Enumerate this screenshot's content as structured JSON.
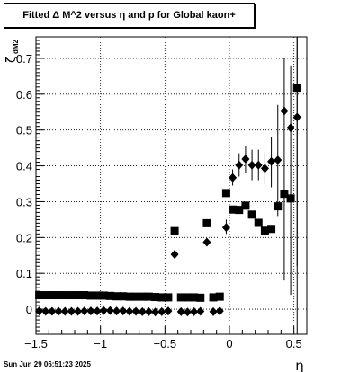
{
  "title": "Fitted Δ M^2 versus η and p for Global kaon+",
  "timestamp": "Sun Jun 29 06:51:23 2025",
  "chart_data": {
    "type": "scatter",
    "xlabel": "η",
    "ylabel": "ζ",
    "ylabel_sub": "dM2",
    "xlim": [
      -1.5,
      0.6
    ],
    "ylim": [
      -0.07,
      0.76
    ],
    "xticks": [
      -1.5,
      -1,
      -0.5,
      0,
      0.5
    ],
    "xtick_labels": [
      "−1.5",
      "−1",
      "−0.5",
      "0",
      "0.5"
    ],
    "yticks": [
      0,
      0.1,
      0.2,
      0.3,
      0.4,
      0.5,
      0.6,
      0.7
    ],
    "ytick_labels": [
      "0",
      "0.1",
      "0.2",
      "0.3",
      "0.4",
      "0.5",
      "0.6",
      "0.7"
    ],
    "grid": true,
    "vline_x": 0.525,
    "series": [
      {
        "marker": "square",
        "points": [
          {
            "x": -1.475,
            "y": 0.039
          },
          {
            "x": -1.425,
            "y": 0.039
          },
          {
            "x": -1.375,
            "y": 0.039
          },
          {
            "x": -1.325,
            "y": 0.039
          },
          {
            "x": -1.275,
            "y": 0.039
          },
          {
            "x": -1.225,
            "y": 0.039
          },
          {
            "x": -1.175,
            "y": 0.039
          },
          {
            "x": -1.125,
            "y": 0.039
          },
          {
            "x": -1.075,
            "y": 0.038
          },
          {
            "x": -1.025,
            "y": 0.038
          },
          {
            "x": -0.975,
            "y": 0.038
          },
          {
            "x": -0.925,
            "y": 0.037
          },
          {
            "x": -0.875,
            "y": 0.036
          },
          {
            "x": -0.825,
            "y": 0.036
          },
          {
            "x": -0.775,
            "y": 0.035
          },
          {
            "x": -0.725,
            "y": 0.035
          },
          {
            "x": -0.675,
            "y": 0.035
          },
          {
            "x": -0.625,
            "y": 0.035
          },
          {
            "x": -0.575,
            "y": 0.034
          },
          {
            "x": -0.525,
            "y": 0.033
          },
          {
            "x": -0.475,
            "y": 0.033
          },
          {
            "x": -0.425,
            "y": 0.218
          },
          {
            "x": -0.375,
            "y": 0.033
          },
          {
            "x": -0.325,
            "y": 0.033
          },
          {
            "x": -0.275,
            "y": 0.033
          },
          {
            "x": -0.225,
            "y": 0.032
          },
          {
            "x": -0.175,
            "y": 0.24
          },
          {
            "x": -0.125,
            "y": 0.033
          },
          {
            "x": -0.075,
            "y": 0.035
          },
          {
            "x": -0.025,
            "y": 0.324
          },
          {
            "x": 0.025,
            "y": 0.278
          },
          {
            "x": 0.075,
            "y": 0.277
          },
          {
            "x": 0.125,
            "y": 0.289
          },
          {
            "x": 0.175,
            "y": 0.264
          },
          {
            "x": 0.225,
            "y": 0.241
          },
          {
            "x": 0.275,
            "y": 0.219
          },
          {
            "x": 0.325,
            "y": 0.224
          },
          {
            "x": 0.375,
            "y": 0.287
          },
          {
            "x": 0.425,
            "y": 0.322
          },
          {
            "x": 0.475,
            "y": 0.309
          },
          {
            "x": 0.525,
            "y": 0.618
          }
        ]
      },
      {
        "marker": "diamond",
        "points": [
          {
            "x": -1.475,
            "y": -0.005
          },
          {
            "x": -1.425,
            "y": -0.006
          },
          {
            "x": -1.375,
            "y": -0.006
          },
          {
            "x": -1.325,
            "y": -0.006
          },
          {
            "x": -1.275,
            "y": -0.006
          },
          {
            "x": -1.225,
            "y": -0.006
          },
          {
            "x": -1.175,
            "y": -0.006
          },
          {
            "x": -1.125,
            "y": -0.005
          },
          {
            "x": -1.075,
            "y": -0.005
          },
          {
            "x": -1.025,
            "y": -0.005
          },
          {
            "x": -0.975,
            "y": -0.004
          },
          {
            "x": -0.925,
            "y": -0.004
          },
          {
            "x": -0.875,
            "y": -0.005
          },
          {
            "x": -0.825,
            "y": -0.005
          },
          {
            "x": -0.775,
            "y": -0.006
          },
          {
            "x": -0.725,
            "y": -0.006
          },
          {
            "x": -0.675,
            "y": -0.007
          },
          {
            "x": -0.625,
            "y": -0.007
          },
          {
            "x": -0.575,
            "y": -0.008
          },
          {
            "x": -0.525,
            "y": -0.007
          },
          {
            "x": -0.475,
            "y": -0.005
          },
          {
            "x": -0.425,
            "y": 0.153
          },
          {
            "x": -0.375,
            "y": -0.007
          },
          {
            "x": -0.325,
            "y": -0.008
          },
          {
            "x": -0.275,
            "y": -0.007
          },
          {
            "x": -0.225,
            "y": -0.006
          },
          {
            "x": -0.175,
            "y": 0.187
          },
          {
            "x": -0.125,
            "y": -0.007
          },
          {
            "x": -0.075,
            "y": -0.005
          },
          {
            "x": -0.025,
            "y": 0.228
          },
          {
            "x": 0.025,
            "y": 0.367
          },
          {
            "x": 0.075,
            "y": 0.402
          },
          {
            "x": 0.125,
            "y": 0.419
          },
          {
            "x": 0.175,
            "y": 0.402
          },
          {
            "x": 0.225,
            "y": 0.402
          },
          {
            "x": 0.275,
            "y": 0.393
          },
          {
            "x": 0.325,
            "y": 0.412
          },
          {
            "x": 0.375,
            "y": 0.416
          },
          {
            "x": 0.425,
            "y": 0.553
          },
          {
            "x": 0.475,
            "y": 0.506
          },
          {
            "x": 0.525,
            "y": 0.536
          }
        ],
        "errors": [
          {
            "x": -0.025,
            "lo": 0.21,
            "hi": 0.25
          },
          {
            "x": 0.025,
            "lo": 0.345,
            "hi": 0.39
          },
          {
            "x": 0.075,
            "lo": 0.37,
            "hi": 0.435
          },
          {
            "x": 0.125,
            "lo": 0.38,
            "hi": 0.455
          },
          {
            "x": 0.175,
            "lo": 0.36,
            "hi": 0.445
          },
          {
            "x": 0.225,
            "lo": 0.36,
            "hi": 0.445
          },
          {
            "x": 0.275,
            "lo": 0.35,
            "hi": 0.44
          },
          {
            "x": 0.325,
            "lo": 0.34,
            "hi": 0.48
          },
          {
            "x": 0.375,
            "lo": 0.26,
            "hi": 0.57
          },
          {
            "x": 0.425,
            "lo": 0.08,
            "hi": 0.7
          },
          {
            "x": 0.475,
            "lo": 0.04,
            "hi": 0.68
          },
          {
            "x": 0.525,
            "lo": 0.12,
            "hi": 0.76
          }
        ]
      }
    ]
  }
}
